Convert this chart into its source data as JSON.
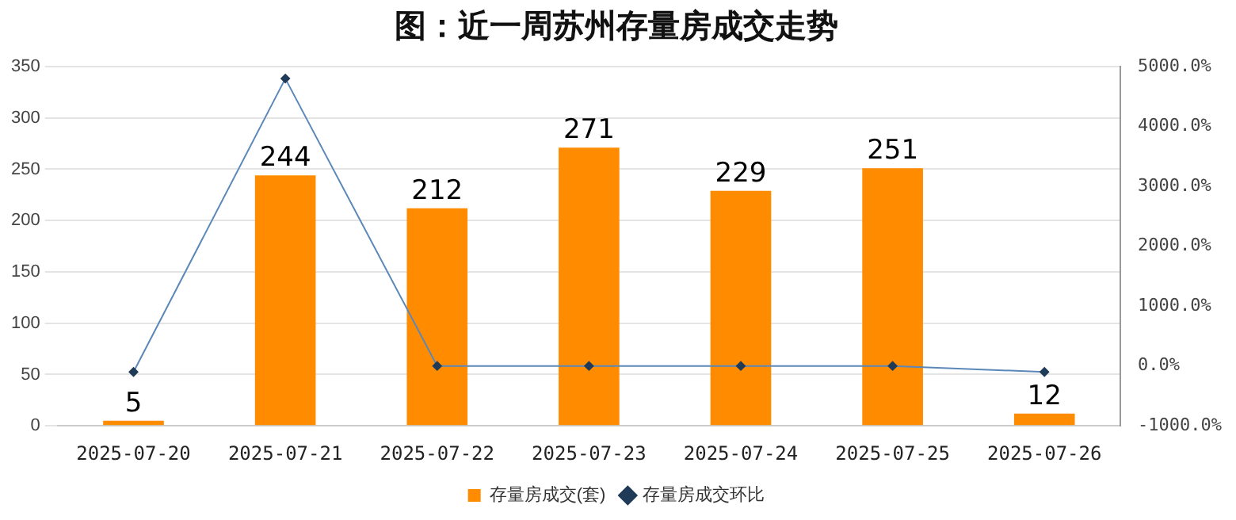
{
  "chart_data": {
    "type": "bar",
    "title": "图：近一周苏州存量房成交走势",
    "categories": [
      "2025-07-20",
      "2025-07-21",
      "2025-07-22",
      "2025-07-23",
      "2025-07-24",
      "2025-07-25",
      "2025-07-26"
    ],
    "series": [
      {
        "name": "存量房成交(套)",
        "color": "#ff8c00",
        "values": [
          5,
          244,
          212,
          271,
          229,
          251,
          12
        ],
        "value_labels": [
          "5",
          "244",
          "212",
          "271",
          "229",
          "251",
          "12"
        ]
      },
      {
        "name": "存量房成交环比",
        "type": "line",
        "axis": "y2",
        "color": "#5b88b8",
        "values": [
          -100,
          4800,
          0,
          0,
          0,
          0,
          -100
        ]
      }
    ],
    "ylim": [
      0,
      350
    ],
    "yticks": [
      0,
      50,
      100,
      150,
      200,
      250,
      300,
      350
    ],
    "y2lim": [
      -1000,
      5000
    ],
    "y2ticks": [
      {
        "value": -1000,
        "label": "-1000.0%"
      },
      {
        "value": 0,
        "label": "0.0%"
      },
      {
        "value": 1000,
        "label": "1000.0%"
      },
      {
        "value": 2000,
        "label": "2000.0%"
      },
      {
        "value": 3000,
        "label": "3000.0%"
      },
      {
        "value": 4000,
        "label": "4000.0%"
      },
      {
        "value": 5000,
        "label": "5000.0%"
      }
    ],
    "grid": "y",
    "legend": "bottom",
    "marker": "diamond"
  }
}
